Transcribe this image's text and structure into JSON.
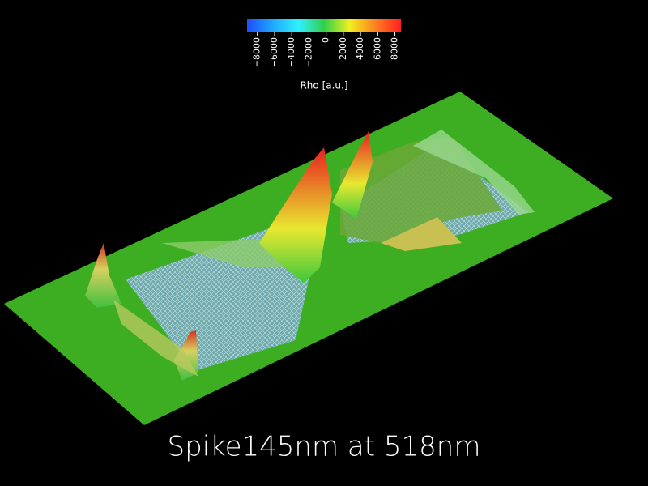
{
  "chart_data": {
    "type": "colorbar",
    "title": "Spike145nm at 518nm",
    "xlabel": "Rho [a.u.]",
    "xlim": [
      -9200,
      8700
    ],
    "xticks": [
      {
        "value": -8000,
        "label": "−8000"
      },
      {
        "value": -6000,
        "label": "−6000"
      },
      {
        "value": -4000,
        "label": "−4000"
      },
      {
        "value": -2000,
        "label": "−2000"
      },
      0,
      2000,
      4000,
      6000,
      8000
    ],
    "colors": [
      "#1f4cff",
      "#1fa8ff",
      "#30f0ff",
      "#2fd04a",
      "#f0f020",
      "#ff8020",
      "#ff2020"
    ]
  }
}
